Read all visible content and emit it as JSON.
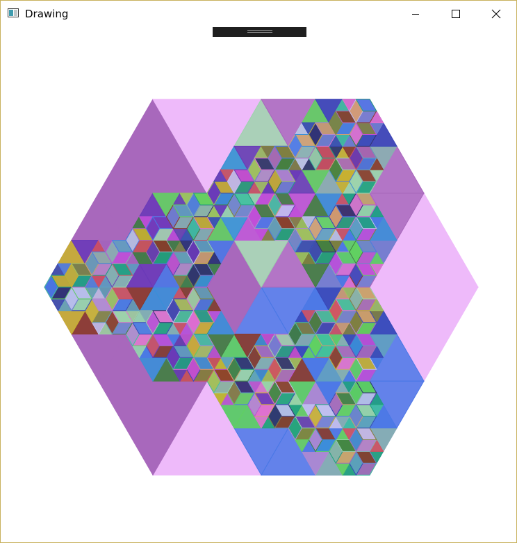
{
  "window": {
    "title": "Drawing",
    "icon": "app-window-icon",
    "controls": [
      "minimize-icon",
      "maximize-icon",
      "close-icon"
    ],
    "border_color": "#c8b15c"
  },
  "drawing": {
    "shape": "hexagonal fractal of rhombi",
    "big_rhombus_colors": [
      "#eebafa",
      "#a868bc",
      "#4a78e6",
      "#9dd3ac"
    ],
    "fill_palette": [
      "#c04fd8",
      "#a868bc",
      "#4a78e6",
      "#9dd3ac",
      "#3a8fd8",
      "#20a080",
      "#8a3a2a",
      "#6a3ab8",
      "#c8b030",
      "#3848b8",
      "#60d060",
      "#88b0b0",
      "#d05060",
      "#b088d0",
      "#60a0c0",
      "#d0a070",
      "#408040",
      "#e070d0",
      "#7080d0",
      "#a0c060",
      "#303070",
      "#40c0a0",
      "#c0c0f0",
      "#808040"
    ]
  }
}
